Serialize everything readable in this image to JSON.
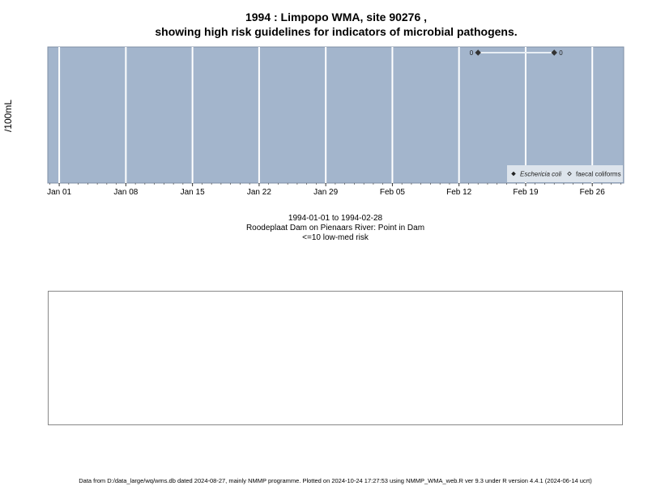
{
  "title_line1": "1994 : Limpopo WMA, site 90276 ,",
  "title_line2": "showing high risk guidelines for indicators of microbial pathogens.",
  "ylabel": "/100mL",
  "subtitle_lines": [
    "1994-01-01 to 1994-02-28",
    "Roodeplaat Dam on Pienaars River: Point in Dam",
    "<=10 low-med risk"
  ],
  "footer": "Data from D:/data_large/wq/wms.db dated 2024-08-27, mainly NMMP programme. Plotted on 2024-10-24 17:27:53 using NMMP_WMA_web.R ver 9.3 under R version 4.4.1 (2024-06-14 ucrt)",
  "colors": {
    "panel_background": "#a3b5cc",
    "grid_major": "#ffffff",
    "grid_minor": "#d3dce6",
    "series_line": "#e8eef4",
    "point": "#333333"
  },
  "chart_data": {
    "type": "scatter",
    "x_range": [
      "1994-01-01",
      "1994-02-28"
    ],
    "x_ticks": [
      "Jan 01",
      "Jan 08",
      "Jan 15",
      "Jan 22",
      "Jan 29",
      "Feb 05",
      "Feb 12",
      "Feb 19",
      "Feb 26"
    ],
    "x_tick_dates": [
      "1994-01-01",
      "1994-01-08",
      "1994-01-15",
      "1994-01-22",
      "1994-01-29",
      "1994-02-05",
      "1994-02-12",
      "1994-02-19",
      "1994-02-26"
    ],
    "ylabel": "/100mL",
    "grid": true,
    "legend_placement": "bottom-right",
    "series": [
      {
        "name": "Eschericia coli",
        "marker": "filled-diamond",
        "points": [
          {
            "x": "1994-02-14",
            "y": 0,
            "label": "0"
          },
          {
            "x": "1994-02-22",
            "y": 0,
            "label": "0"
          }
        ]
      },
      {
        "name": "faecal coliforms",
        "marker": "open-diamond",
        "points": []
      }
    ]
  }
}
